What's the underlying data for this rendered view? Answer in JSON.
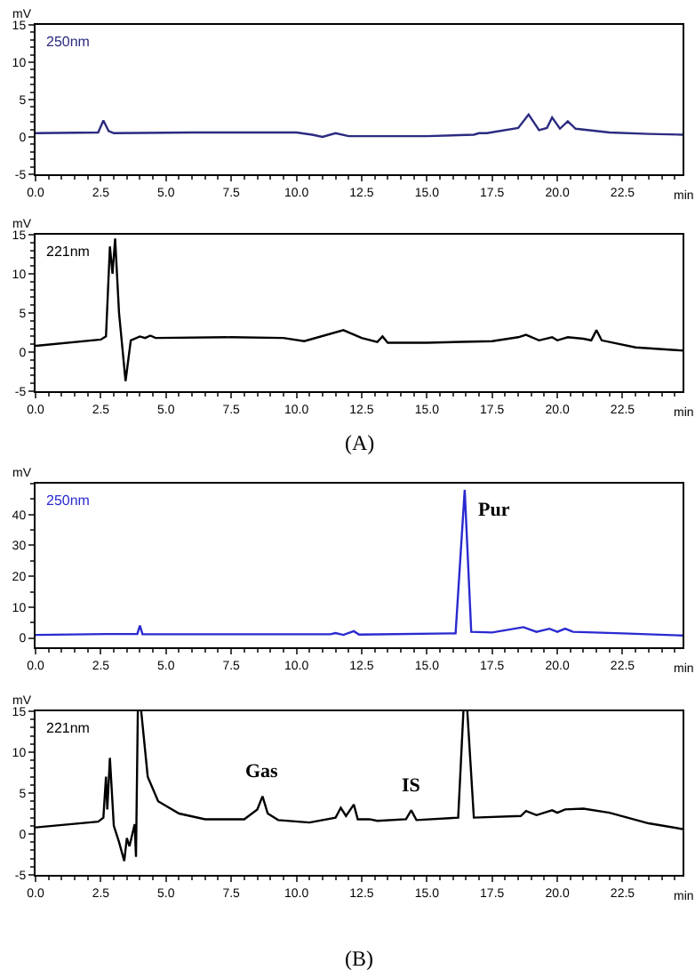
{
  "chart_data": [
    {
      "type": "line",
      "xlabel": "min",
      "ylabel": "mV",
      "annotations": [
        "250nm"
      ],
      "xlim": [
        0,
        24.8
      ],
      "xticks": [
        {
          "value": 0,
          "label": "0.0"
        },
        {
          "value": 2.5,
          "label": "2.5"
        },
        {
          "value": 5,
          "label": "5.0"
        },
        {
          "value": 7.5,
          "label": "7.5"
        },
        {
          "value": 10,
          "label": "10.0"
        },
        {
          "value": 12.5,
          "label": "12.5"
        },
        {
          "value": 15,
          "label": "15.0"
        },
        {
          "value": 17.5,
          "label": "17.5"
        },
        {
          "value": 20,
          "label": "20.0"
        },
        {
          "value": 22.5,
          "label": "22.5"
        }
      ],
      "ylim": [
        -5,
        15
      ],
      "yticks": [
        -5,
        0,
        5,
        10,
        15
      ],
      "x": [
        0,
        2.4,
        2.6,
        2.8,
        3.0,
        6,
        10,
        10.6,
        11.0,
        11.5,
        12.0,
        15,
        16.8,
        17.0,
        17.3,
        18.5,
        18.9,
        19.3,
        19.6,
        19.8,
        20.1,
        20.4,
        20.7,
        22,
        23.5,
        24.8
      ],
      "series": [
        {
          "color": "#2b2b80",
          "values": [
            0.5,
            0.6,
            2.2,
            0.8,
            0.5,
            0.6,
            0.6,
            0.3,
            0.0,
            0.5,
            0.1,
            0.1,
            0.3,
            0.5,
            0.5,
            1.2,
            3.0,
            0.9,
            1.2,
            2.6,
            1.1,
            2.1,
            1.1,
            0.6,
            0.4,
            0.3
          ]
        }
      ]
    },
    {
      "type": "line",
      "xlabel": "min",
      "ylabel": "mV",
      "annotations": [
        "221nm",
        "(A)"
      ],
      "xlim": [
        0,
        24.8
      ],
      "xticks": [
        {
          "value": 0,
          "label": "0.0"
        },
        {
          "value": 2.5,
          "label": "2.5"
        },
        {
          "value": 5,
          "label": "5.0"
        },
        {
          "value": 7.5,
          "label": "7.5"
        },
        {
          "value": 10,
          "label": "10.0"
        },
        {
          "value": 12.5,
          "label": "12.5"
        },
        {
          "value": 15,
          "label": "15.0"
        },
        {
          "value": 17.5,
          "label": "17.5"
        },
        {
          "value": 20,
          "label": "20.0"
        },
        {
          "value": 22.5,
          "label": "22.5"
        }
      ],
      "ylim": [
        -5,
        15
      ],
      "yticks": [
        -5,
        0,
        5,
        10,
        15
      ],
      "x": [
        0,
        2.5,
        2.7,
        2.85,
        2.95,
        3.05,
        3.2,
        3.45,
        3.65,
        4.0,
        4.2,
        4.4,
        4.6,
        7.5,
        9.5,
        10.3,
        11.8,
        12.5,
        13.1,
        13.3,
        13.5,
        15,
        17.5,
        18.5,
        18.8,
        19.3,
        19.8,
        20.0,
        20.4,
        21.0,
        21.3,
        21.5,
        21.7,
        23,
        24.8
      ],
      "series": [
        {
          "color": "#000000",
          "values": [
            0.8,
            1.6,
            2,
            13.5,
            10,
            14.5,
            5,
            -3.7,
            1.5,
            2,
            1.8,
            2.1,
            1.8,
            1.9,
            1.8,
            1.4,
            2.8,
            1.8,
            1.3,
            2.0,
            1.2,
            1.2,
            1.4,
            1.9,
            2.2,
            1.5,
            1.9,
            1.5,
            1.9,
            1.7,
            1.5,
            2.8,
            1.5,
            0.6,
            0.2
          ]
        }
      ]
    },
    {
      "type": "line",
      "xlabel": "min",
      "ylabel": "mV",
      "annotations": [
        "250nm",
        {
          "text": "Pur",
          "x": 16.45,
          "y": 48
        }
      ],
      "xlim": [
        0,
        24.8
      ],
      "xticks": [
        {
          "value": 0,
          "label": "0.0"
        },
        {
          "value": 2.5,
          "label": "2.5"
        },
        {
          "value": 5,
          "label": "5.0"
        },
        {
          "value": 7.5,
          "label": "7.5"
        },
        {
          "value": 10,
          "label": "10.0"
        },
        {
          "value": 12.5,
          "label": "12.5"
        },
        {
          "value": 15,
          "label": "15.0"
        },
        {
          "value": 17.5,
          "label": "17.5"
        },
        {
          "value": 20,
          "label": "20.0"
        },
        {
          "value": 22.5,
          "label": "22.5"
        }
      ],
      "ylim": [
        -3,
        50
      ],
      "yticks": [
        0,
        10,
        20,
        30,
        40
      ],
      "x": [
        0,
        2.7,
        3.9,
        4.0,
        4.1,
        11.3,
        11.5,
        11.8,
        12.2,
        12.4,
        16.1,
        16.45,
        16.7,
        17.5,
        18.7,
        19.2,
        19.7,
        20.0,
        20.3,
        20.6,
        22.5,
        24.8
      ],
      "series": [
        {
          "color": "#2a2ad0",
          "values": [
            1,
            1.3,
            1.3,
            4,
            1.2,
            1.2,
            1.6,
            1.0,
            2.2,
            1.1,
            1.5,
            48,
            2,
            1.8,
            3.5,
            2.0,
            3.0,
            2.0,
            3.0,
            2,
            1.5,
            0.8
          ]
        }
      ]
    },
    {
      "type": "line",
      "xlabel": "min",
      "ylabel": "mV",
      "annotations": [
        "221nm",
        "(B)",
        {
          "text": "Gas",
          "x": 8.7,
          "y": 4.6
        },
        {
          "text": "IS",
          "x": 14.4,
          "y": 2.9
        }
      ],
      "xlim": [
        0,
        24.8
      ],
      "xticks": [
        {
          "value": 0,
          "label": "0.0"
        },
        {
          "value": 2.5,
          "label": "2.5"
        },
        {
          "value": 5,
          "label": "5.0"
        },
        {
          "value": 7.5,
          "label": "7.5"
        },
        {
          "value": 10,
          "label": "10.0"
        },
        {
          "value": 12.5,
          "label": "12.5"
        },
        {
          "value": 15,
          "label": "15.0"
        },
        {
          "value": 17.5,
          "label": "17.5"
        },
        {
          "value": 20,
          "label": "20.0"
        },
        {
          "value": 22.5,
          "label": "22.5"
        }
      ],
      "ylim": [
        -5,
        15
      ],
      "yticks": [
        -5,
        0,
        5,
        10,
        15
      ],
      "x": [
        0,
        2.4,
        2.6,
        2.7,
        2.75,
        2.85,
        3.0,
        3.2,
        3.4,
        3.5,
        3.6,
        3.8,
        3.85,
        3.92,
        4.0,
        4.05,
        4.3,
        4.7,
        5.5,
        6.5,
        8.0,
        8.5,
        8.7,
        8.9,
        9.3,
        10.5,
        11.5,
        11.7,
        11.9,
        12.2,
        12.35,
        12.8,
        13.1,
        14.2,
        14.4,
        14.6,
        16.2,
        16.4,
        16.48,
        16.55,
        16.8,
        18.6,
        18.8,
        19.2,
        19.8,
        20.0,
        20.3,
        21.0,
        22,
        23.5,
        24.8
      ],
      "series": [
        {
          "color": "#000000",
          "values": [
            0.8,
            1.5,
            2,
            7,
            3,
            9.3,
            1,
            -1,
            -3.3,
            -0.5,
            -1.5,
            1.2,
            -2.8,
            15,
            null,
            15,
            7,
            4,
            2.5,
            1.8,
            1.8,
            3,
            4.6,
            2.5,
            1.7,
            1.4,
            2,
            3.2,
            2.2,
            3.6,
            1.8,
            1.8,
            1.6,
            1.8,
            2.9,
            1.7,
            2,
            15,
            null,
            15,
            2,
            2.2,
            2.8,
            2.3,
            2.9,
            2.6,
            3.0,
            3.1,
            2.6,
            1.3,
            0.6
          ]
        }
      ]
    }
  ]
}
